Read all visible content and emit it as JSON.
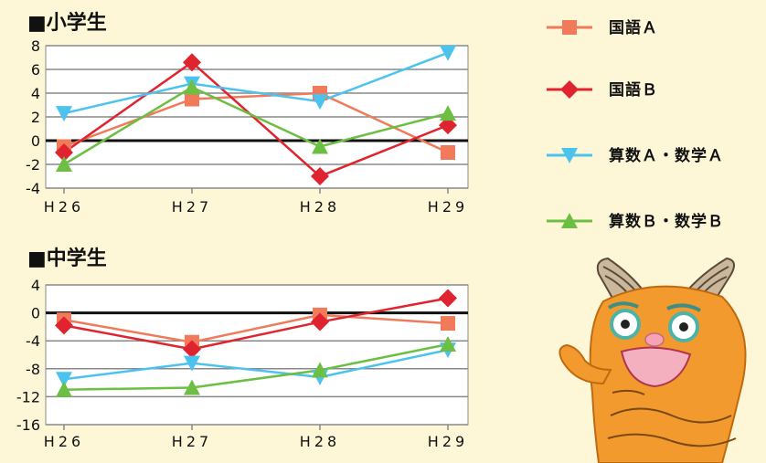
{
  "chart_data": [
    {
      "type": "line",
      "title": "■小学生",
      "categories": [
        "H26",
        "H27",
        "H28",
        "H29"
      ],
      "ylim": [
        -4,
        8
      ],
      "yticks": [
        8,
        6,
        4,
        2,
        0,
        -2,
        -4
      ],
      "series": [
        {
          "name": "国語A",
          "color": "#f07a5a",
          "marker": "square",
          "values": [
            -0.5,
            3.5,
            4.0,
            -1.0
          ]
        },
        {
          "name": "国語B",
          "color": "#e0242f",
          "marker": "diamond",
          "values": [
            -1.0,
            6.6,
            -3.0,
            1.3
          ]
        },
        {
          "name": "算数A・数学A",
          "color": "#4bc3ee",
          "marker": "triangle-down",
          "values": [
            2.3,
            4.8,
            3.3,
            7.4
          ]
        },
        {
          "name": "算数B・数学B",
          "color": "#6cbf43",
          "marker": "triangle-up",
          "values": [
            -2.0,
            4.5,
            -0.5,
            2.3
          ]
        }
      ]
    },
    {
      "type": "line",
      "title": "■中学生",
      "categories": [
        "H26",
        "H27",
        "H28",
        "H29"
      ],
      "ylim": [
        -16,
        4
      ],
      "yticks": [
        4,
        0,
        -4,
        -8,
        -12,
        -16
      ],
      "series": [
        {
          "name": "国語A",
          "color": "#f07a5a",
          "marker": "square",
          "values": [
            -1.0,
            -4.2,
            -0.3,
            -1.5
          ]
        },
        {
          "name": "国語B",
          "color": "#e0242f",
          "marker": "diamond",
          "values": [
            -1.8,
            -5.2,
            -1.3,
            2.1
          ]
        },
        {
          "name": "算数A・数学A",
          "color": "#4bc3ee",
          "marker": "triangle-down",
          "values": [
            -9.5,
            -7.2,
            -9.2,
            -5.3
          ]
        },
        {
          "name": "算数B・数学B",
          "color": "#6cbf43",
          "marker": "triangle-up",
          "values": [
            -11.0,
            -10.7,
            -8.2,
            -4.5
          ]
        }
      ]
    }
  ],
  "legend": {
    "position": "right",
    "items": [
      {
        "label": "国語Ａ",
        "marker": "square",
        "color": "#f07a5a"
      },
      {
        "label": "国語Ｂ",
        "marker": "diamond",
        "color": "#e0242f"
      },
      {
        "label": "算数Ａ・数学Ａ",
        "marker": "triangle-down",
        "color": "#4bc3ee"
      },
      {
        "label": "算数Ｂ・数学Ｂ",
        "marker": "triangle-up",
        "color": "#6cbf43"
      }
    ]
  },
  "mascot": {
    "icon": "orange-mascot-illustration"
  },
  "x_tick_labels": [
    "H26",
    "H27",
    "H28",
    "H29"
  ],
  "colors": {
    "background": "#fdf7d8",
    "plot_bg": "#ffffff",
    "grid": "#888888",
    "zero_line": "#111111"
  }
}
